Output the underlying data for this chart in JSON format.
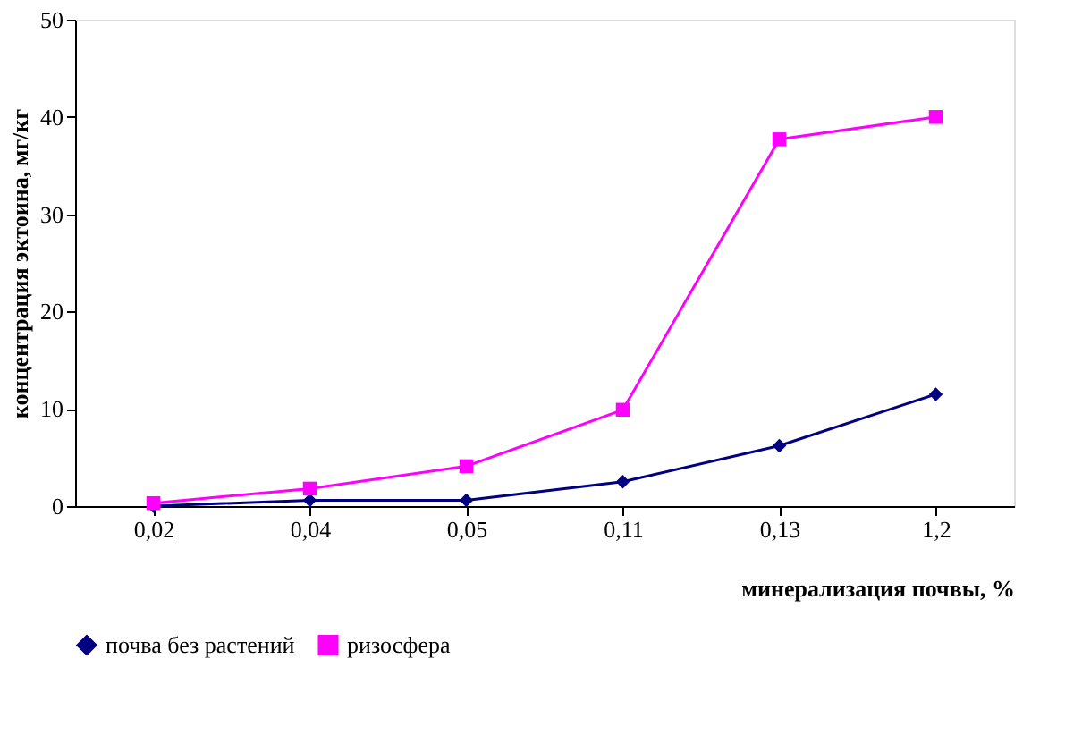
{
  "chart_data": {
    "type": "line",
    "xlabel": "минерализация почвы, %",
    "ylabel": "концентрация эктоина, мг/кг",
    "categories": [
      "0,02",
      "0,04",
      "0,05",
      "0,11",
      "0,13",
      "1,2"
    ],
    "series": [
      {
        "name": "почва без растений",
        "color": "#000080",
        "marker": "diamond",
        "values": [
          0,
          0.6,
          0.6,
          2.5,
          6.2,
          11.5
        ]
      },
      {
        "name": "ризосфера",
        "color": "#ff00ff",
        "marker": "square",
        "values": [
          0.3,
          1.8,
          4.1,
          9.9,
          37.7,
          40
        ]
      }
    ],
    "ylim": [
      0,
      50
    ],
    "yticks": [
      0,
      10,
      20,
      30,
      40,
      50
    ],
    "grid": false,
    "legend": "bottom"
  }
}
